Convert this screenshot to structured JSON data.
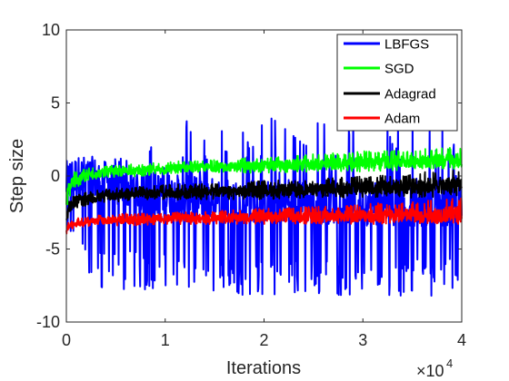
{
  "chart_data": {
    "type": "line",
    "title": "",
    "xlabel": "Iterations",
    "ylabel": "Step size",
    "x_multiplier_label": "×10",
    "x_multiplier_exponent": "4",
    "xlim": [
      0,
      40000
    ],
    "ylim": [
      -10,
      10
    ],
    "xticks": [
      0,
      10000,
      20000,
      30000,
      40000
    ],
    "xtick_labels": [
      "0",
      "1",
      "2",
      "3",
      "4"
    ],
    "yticks": [
      -10,
      -5,
      0,
      5,
      10
    ],
    "ytick_labels": [
      "-10",
      "-5",
      "0",
      "5",
      "10"
    ],
    "grid": false,
    "legend_position": "top-right",
    "series": [
      {
        "name": "LBFGS",
        "color": "#0000ff",
        "x": [
          0,
          200,
          500,
          1000,
          2000,
          3000,
          4000,
          6000,
          8000,
          10000,
          12000,
          12500,
          14000,
          16000,
          18000,
          20000,
          22000,
          24000,
          26000,
          28000,
          30000,
          32000,
          34000,
          36000,
          38000,
          39500,
          40000
        ],
        "mean": [
          -0.5,
          -0.3,
          -0.2,
          -0.1,
          -0.1,
          -0.2,
          -0.5,
          -0.8,
          -1.0,
          -1.2,
          -1.5,
          -1.5,
          -1.6,
          -1.6,
          -1.7,
          -1.7,
          -1.8,
          -1.8,
          -1.8,
          -1.8,
          -1.9,
          -1.9,
          -1.9,
          -2.0,
          -2.0,
          -2.0,
          -2.0
        ],
        "max": [
          0.5,
          1.2,
          1.0,
          1.0,
          1.0,
          1.0,
          1.0,
          1.5,
          3.0,
          2.5,
          3.5,
          5.8,
          3.5,
          4.0,
          3.5,
          4.5,
          3.5,
          3.5,
          4.0,
          4.0,
          4.5,
          4.5,
          5.0,
          4.0,
          3.5,
          3.8,
          3.0
        ],
        "min": [
          -6.5,
          -5.0,
          -4.5,
          -4.0,
          -7.0,
          -8.0,
          -8.0,
          -8.0,
          -8.0,
          -7.5,
          -8.0,
          -8.0,
          -8.2,
          -8.2,
          -8.2,
          -8.2,
          -8.2,
          -8.2,
          -8.2,
          -8.2,
          -8.2,
          -8.2,
          -8.2,
          -8.2,
          -8.2,
          -8.0,
          -7.0
        ]
      },
      {
        "name": "SGD",
        "color": "#00ff00",
        "x": [
          0,
          200,
          500,
          1000,
          2000,
          3000,
          5000,
          8000,
          10000,
          15000,
          20000,
          25000,
          30000,
          35000,
          40000
        ],
        "mean": [
          -2.5,
          -1.0,
          -0.5,
          -0.2,
          0.0,
          0.2,
          0.3,
          0.4,
          0.5,
          0.6,
          0.7,
          0.8,
          0.9,
          1.0,
          1.1
        ],
        "max": [
          -1.0,
          0.0,
          0.3,
          0.4,
          0.5,
          0.7,
          0.7,
          0.9,
          1.0,
          1.1,
          1.3,
          1.5,
          1.7,
          1.8,
          2.0
        ],
        "min": [
          -3.5,
          -2.0,
          -1.2,
          -0.8,
          -0.4,
          -0.2,
          -0.1,
          0.0,
          0.1,
          0.2,
          0.2,
          0.3,
          0.3,
          0.4,
          0.5
        ]
      },
      {
        "name": "Adagrad",
        "color": "#000000",
        "x": [
          0,
          200,
          500,
          1000,
          2000,
          3000,
          5000,
          8000,
          10000,
          15000,
          20000,
          25000,
          30000,
          35000,
          40000
        ],
        "mean": [
          -3.0,
          -2.3,
          -2.0,
          -1.8,
          -1.6,
          -1.5,
          -1.3,
          -1.2,
          -1.2,
          -1.1,
          -1.0,
          -0.9,
          -0.8,
          -0.7,
          -0.6
        ],
        "max": [
          -2.0,
          -1.8,
          -1.5,
          -1.3,
          -1.1,
          -1.0,
          -0.8,
          -0.7,
          -0.6,
          -0.5,
          -0.3,
          -0.2,
          0.0,
          0.2,
          0.5
        ],
        "min": [
          -3.6,
          -3.0,
          -2.6,
          -2.3,
          -2.1,
          -2.0,
          -1.8,
          -1.7,
          -1.7,
          -1.6,
          -1.6,
          -1.5,
          -1.5,
          -1.5,
          -1.4
        ]
      },
      {
        "name": "Adam",
        "color": "#ff0000",
        "x": [
          0,
          200,
          500,
          1000,
          2000,
          3000,
          5000,
          8000,
          10000,
          15000,
          20000,
          25000,
          30000,
          35000,
          40000
        ],
        "mean": [
          -3.8,
          -3.5,
          -3.4,
          -3.3,
          -3.2,
          -3.1,
          -3.0,
          -3.0,
          -2.9,
          -2.9,
          -2.8,
          -2.8,
          -2.7,
          -2.7,
          -2.6
        ],
        "max": [
          -3.3,
          -3.1,
          -3.0,
          -2.9,
          -2.8,
          -2.7,
          -2.6,
          -2.5,
          -2.5,
          -2.4,
          -2.2,
          -2.1,
          -1.9,
          -1.7,
          -1.5
        ],
        "min": [
          -4.0,
          -3.8,
          -3.7,
          -3.6,
          -3.5,
          -3.5,
          -3.4,
          -3.4,
          -3.3,
          -3.3,
          -3.3,
          -3.3,
          -3.3,
          -3.3,
          -3.3
        ]
      }
    ]
  }
}
